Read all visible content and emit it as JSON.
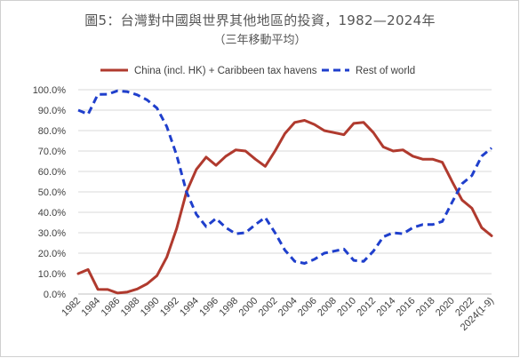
{
  "chart_data": {
    "type": "line",
    "title": "圖5：台灣對中國與世界其他地區的投資，1982—2024年",
    "subtitle": "（三年移動平均）",
    "xlabel": "",
    "ylabel": "",
    "ylim": [
      0,
      100
    ],
    "grid": true,
    "legend_position": "top",
    "x": [
      "1982",
      "1983",
      "1984",
      "1985",
      "1986",
      "1987",
      "1988",
      "1989",
      "1990",
      "1991",
      "1992",
      "1993",
      "1994",
      "1995",
      "1996",
      "1997",
      "1998",
      "1999",
      "2000",
      "2001",
      "2002",
      "2003",
      "2004",
      "2005",
      "2006",
      "2007",
      "2008",
      "2009",
      "2010",
      "2011",
      "2012",
      "2013",
      "2014",
      "2015",
      "2016",
      "2017",
      "2018",
      "2019",
      "2020",
      "2021",
      "2022",
      "2023",
      "2024(1-9)"
    ],
    "x_tick_labels": [
      "1982",
      "1984",
      "1986",
      "1988",
      "1990",
      "1992",
      "1994",
      "1996",
      "1998",
      "2000",
      "2002",
      "2004",
      "2006",
      "2008",
      "2010",
      "2012",
      "2014",
      "2016",
      "2018",
      "2020",
      "2022",
      "2024(1-9)"
    ],
    "y_tick_labels": [
      "0.0%",
      "10.0%",
      "20.0%",
      "30.0%",
      "40.0%",
      "50.0%",
      "60.0%",
      "70.0%",
      "80.0%",
      "90.0%",
      "100.0%"
    ],
    "series": [
      {
        "name": "China (incl. HK) + Caribbeen tax havens",
        "color": "#b03a2e",
        "style": "solid",
        "values": [
          10.0,
          12.0,
          2.3,
          2.2,
          0.5,
          1.0,
          2.5,
          5.0,
          9.0,
          18.0,
          32.0,
          50.0,
          61.0,
          67.0,
          63.0,
          67.5,
          70.5,
          70.0,
          66.0,
          62.5,
          70.0,
          78.5,
          84.0,
          85.0,
          83.0,
          80.0,
          79.0,
          78.0,
          83.5,
          84.0,
          79.0,
          72.0,
          70.0,
          70.5,
          67.5,
          66.0,
          66.0,
          64.5,
          55.0,
          46.0,
          42.0,
          32.5,
          28.5
        ]
      },
      {
        "name": "Rest of world",
        "color": "#1f3fcc",
        "style": "dashed",
        "values": [
          90.0,
          88.0,
          97.7,
          97.8,
          99.5,
          99.0,
          97.5,
          95.0,
          91.0,
          82.0,
          68.0,
          50.0,
          39.0,
          33.0,
          37.0,
          32.5,
          29.5,
          30.0,
          34.0,
          37.5,
          30.0,
          21.5,
          16.0,
          15.0,
          17.0,
          20.0,
          21.0,
          22.0,
          16.5,
          16.0,
          21.0,
          28.0,
          30.0,
          29.5,
          32.5,
          34.0,
          34.0,
          35.5,
          45.0,
          54.0,
          58.0,
          67.5,
          71.5
        ]
      }
    ]
  }
}
